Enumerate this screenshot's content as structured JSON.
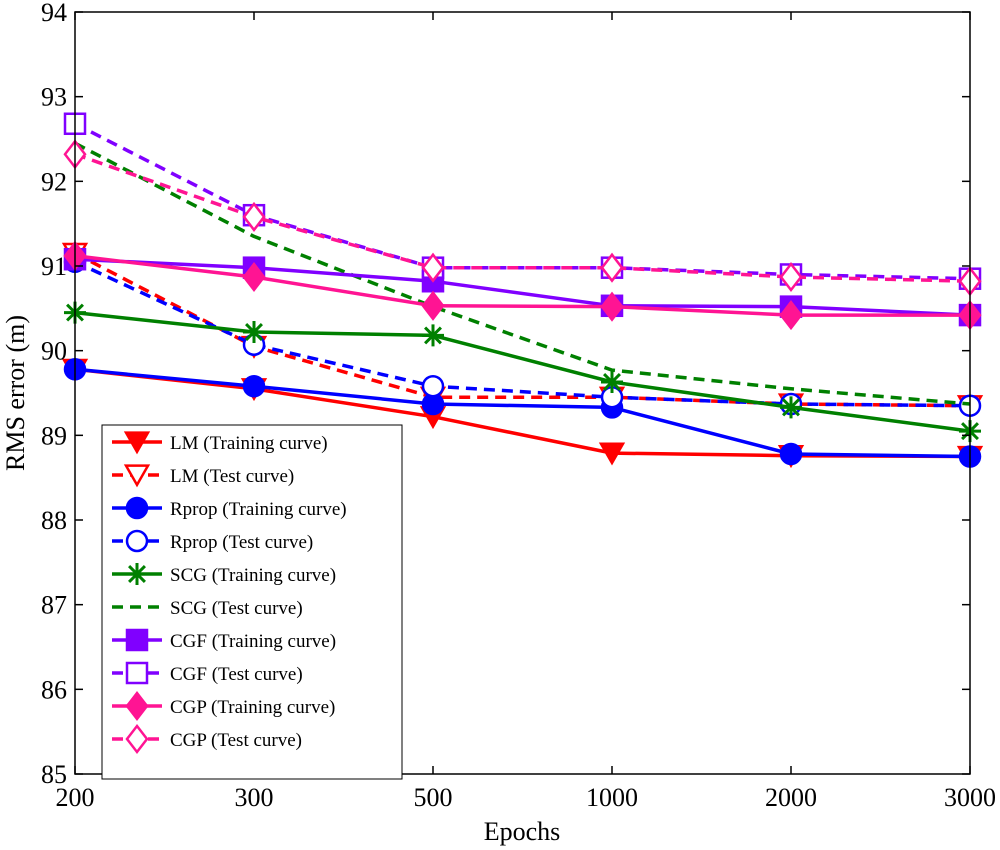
{
  "chart_data": {
    "type": "line",
    "title": "",
    "xlabel": "Epochs",
    "ylabel": "RMS error (m)",
    "categories": [
      "200",
      "300",
      "500",
      "1000",
      "2000",
      "3000"
    ],
    "ylim": [
      85,
      94
    ],
    "yticks": [
      "85",
      "86",
      "87",
      "88",
      "89",
      "90",
      "91",
      "92",
      "93",
      "94"
    ],
    "grid": false,
    "legend_position": "bottom-left",
    "series": [
      {
        "name": "LM (Training curve)",
        "color": "#ff0000",
        "dash": "solid",
        "marker": "triangle-down",
        "fill": "filled",
        "values": [
          89.78,
          89.55,
          89.22,
          88.79,
          88.76,
          88.75
        ]
      },
      {
        "name": "LM (Test curve)",
        "color": "#ff0000",
        "dash": "dashed",
        "marker": "triangle-down",
        "fill": "open",
        "values": [
          91.15,
          90.05,
          89.45,
          89.45,
          89.37,
          89.35
        ]
      },
      {
        "name": "Rprop (Training curve)",
        "color": "#0000ff",
        "dash": "solid",
        "marker": "circle",
        "fill": "filled",
        "values": [
          89.78,
          89.58,
          89.37,
          89.33,
          88.78,
          88.75
        ]
      },
      {
        "name": "Rprop (Test curve)",
        "color": "#0000ff",
        "dash": "dashed",
        "marker": "circle",
        "fill": "open",
        "values": [
          91.05,
          90.07,
          89.58,
          89.45,
          89.37,
          89.35
        ]
      },
      {
        "name": "SCG (Training curve)",
        "color": "#008000",
        "dash": "solid",
        "marker": "asterisk",
        "fill": "none",
        "values": [
          90.45,
          90.22,
          90.18,
          89.63,
          89.33,
          89.05
        ]
      },
      {
        "name": "SCG (Test curve)",
        "color": "#008000",
        "dash": "dashed",
        "marker": "none",
        "fill": "none",
        "values": [
          92.45,
          91.35,
          90.52,
          89.77,
          89.55,
          89.37
        ]
      },
      {
        "name": "CGF (Training curve)",
        "color": "#8000ff",
        "dash": "solid",
        "marker": "square",
        "fill": "filled",
        "values": [
          91.08,
          90.98,
          90.82,
          90.53,
          90.52,
          90.42
        ]
      },
      {
        "name": "CGF (Test curve)",
        "color": "#8000ff",
        "dash": "dashed",
        "marker": "square",
        "fill": "open",
        "values": [
          92.68,
          91.6,
          90.98,
          90.98,
          90.9,
          90.85
        ]
      },
      {
        "name": "CGP (Training curve)",
        "color": "#ff1493",
        "dash": "solid",
        "marker": "diamond",
        "fill": "filled",
        "values": [
          91.12,
          90.87,
          90.53,
          90.52,
          90.42,
          90.42
        ]
      },
      {
        "name": "CGP (Test curve)",
        "color": "#ff1493",
        "dash": "dashed",
        "marker": "diamond",
        "fill": "open",
        "values": [
          92.32,
          91.58,
          90.98,
          90.98,
          90.87,
          90.82
        ]
      }
    ]
  }
}
